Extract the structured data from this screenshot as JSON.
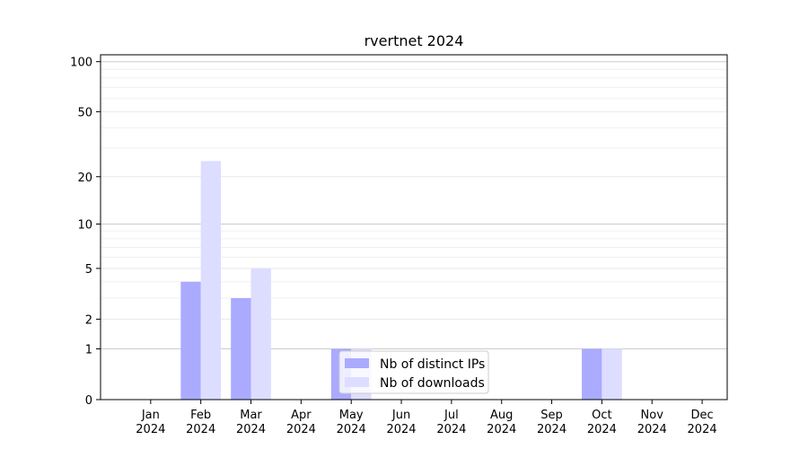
{
  "chart_data": {
    "type": "bar",
    "title": "rvertnet 2024",
    "categories": [
      "Jan\n2024",
      "Feb\n2024",
      "Mar\n2024",
      "Apr\n2024",
      "May\n2024",
      "Jun\n2024",
      "Jul\n2024",
      "Aug\n2024",
      "Sep\n2024",
      "Oct\n2024",
      "Nov\n2024",
      "Dec\n2024"
    ],
    "series": [
      {
        "name": "Nb of distinct IPs",
        "color": "#aaaaff",
        "values": [
          0,
          4,
          3,
          0,
          1,
          0,
          0,
          0,
          0,
          1,
          0,
          0
        ]
      },
      {
        "name": "Nb of downloads",
        "color": "#ddddff",
        "values": [
          0,
          25,
          5,
          0,
          1,
          0,
          0,
          0,
          0,
          1,
          0,
          0
        ]
      }
    ],
    "yscale": "symlog",
    "yticks": [
      0,
      1,
      2,
      5,
      10,
      20,
      50,
      100
    ],
    "ylim": [
      0,
      110
    ],
    "legend": "lower-center",
    "grid": true
  }
}
